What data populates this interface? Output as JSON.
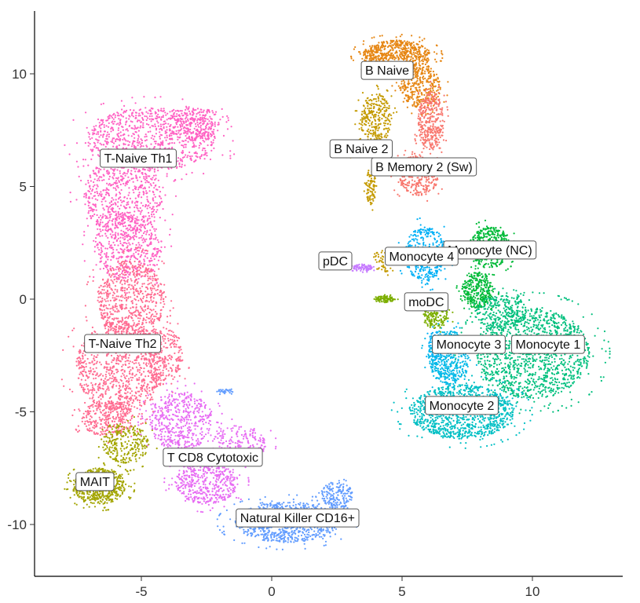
{
  "chart_data": {
    "type": "scatter",
    "title": "",
    "xlabel": "",
    "ylabel": "",
    "xlim": [
      -9.1,
      13.5
    ],
    "ylim": [
      -12.3,
      12.8
    ],
    "x_ticks": [
      -5,
      0,
      5,
      10
    ],
    "y_ticks": [
      10,
      5,
      0,
      -5,
      -10
    ],
    "grid": false,
    "legend": "none",
    "clusters": [
      {
        "name": "T-Naive Th1",
        "color": "#FF61C3",
        "blobs": [
          [
            -4.6,
            7.1,
            2.5,
            1.4,
            300
          ],
          [
            -5.7,
            4.6,
            1.5,
            1.8,
            220
          ],
          [
            -5.5,
            2.3,
            1.3,
            1.5,
            160
          ],
          [
            -3.0,
            7.8,
            1.0,
            0.8,
            80
          ]
        ]
      },
      {
        "name": "T-Naive Th2",
        "color": "#FF6C91",
        "blobs": [
          [
            -5.4,
            0.0,
            1.3,
            1.7,
            220
          ],
          [
            -5.8,
            -3.0,
            1.7,
            2.0,
            320
          ],
          [
            -6.3,
            -5.3,
            1.0,
            0.8,
            100
          ],
          [
            -4.2,
            -2.5,
            0.8,
            1.3,
            90
          ]
        ]
      },
      {
        "name": "MAIT",
        "color": "#A3A500",
        "blobs": [
          [
            -6.6,
            -8.3,
            1.0,
            0.8,
            200
          ],
          [
            -5.6,
            -6.4,
            0.9,
            0.9,
            90
          ]
        ]
      },
      {
        "name": "T CD8 Cytotoxic",
        "color": "#E76BF3",
        "blobs": [
          [
            -3.5,
            -5.4,
            1.2,
            1.3,
            170
          ],
          [
            -2.5,
            -8.1,
            1.2,
            1.0,
            170
          ],
          [
            -1.3,
            -6.4,
            1.1,
            0.8,
            70
          ]
        ]
      },
      {
        "name": "Natural Killer CD16+",
        "color": "#619CFF",
        "blobs": [
          [
            0.6,
            -9.9,
            2.0,
            0.9,
            300
          ],
          [
            2.5,
            -8.7,
            0.6,
            0.6,
            60
          ],
          [
            -1.8,
            -4.1,
            0.3,
            0.1,
            10
          ]
        ]
      },
      {
        "name": "B Naive",
        "color": "#E68613",
        "blobs": [
          [
            4.8,
            10.8,
            1.3,
            0.7,
            220
          ],
          [
            5.7,
            9.4,
            0.8,
            0.9,
            110
          ]
        ]
      },
      {
        "name": "B Naive 2",
        "color": "#C49A00",
        "blobs": [
          [
            4.0,
            8.0,
            0.6,
            1.1,
            100
          ],
          [
            3.3,
            6.6,
            0.8,
            0.25,
            50
          ],
          [
            3.8,
            5.0,
            0.2,
            0.8,
            30
          ],
          [
            4.3,
            1.7,
            0.4,
            0.5,
            20
          ]
        ]
      },
      {
        "name": "B Memory 2 (Sw)",
        "color": "#F8766D",
        "blobs": [
          [
            6.1,
            7.9,
            0.5,
            1.3,
            120
          ],
          [
            5.6,
            5.5,
            0.8,
            0.9,
            110
          ]
        ]
      },
      {
        "name": "Monocyte 4",
        "color": "#00B0F6",
        "blobs": [
          [
            5.9,
            2.0,
            0.8,
            1.2,
            120
          ],
          [
            6.3,
            -2.1,
            0.3,
            0.7,
            40
          ]
        ]
      },
      {
        "name": "Monocyte (NC)",
        "color": "#00BA38",
        "blobs": [
          [
            8.4,
            2.3,
            0.8,
            0.9,
            160
          ],
          [
            7.9,
            0.4,
            0.6,
            0.8,
            110
          ]
        ]
      },
      {
        "name": "pDC",
        "color": "#C77CFF",
        "blobs": [
          [
            3.5,
            1.4,
            0.4,
            0.15,
            30
          ]
        ]
      },
      {
        "name": "moDC",
        "color": "#7CAE00",
        "blobs": [
          [
            4.3,
            0.0,
            0.4,
            0.15,
            30
          ],
          [
            6.3,
            -0.8,
            0.5,
            0.5,
            50
          ]
        ]
      },
      {
        "name": "Monocyte 1",
        "color": "#00BF7D",
        "blobs": [
          [
            10.0,
            -2.4,
            2.2,
            2.0,
            450
          ],
          [
            8.8,
            -0.6,
            1.0,
            0.8,
            90
          ]
        ]
      },
      {
        "name": "Monocyte 2",
        "color": "#00BFC4",
        "blobs": [
          [
            7.3,
            -5.0,
            2.0,
            1.2,
            380
          ]
        ]
      },
      {
        "name": "Monocyte 3",
        "color": "#00B8E7",
        "blobs": [
          [
            6.8,
            -2.6,
            0.8,
            1.2,
            150
          ]
        ]
      }
    ],
    "labels": [
      {
        "text": "B Naive",
        "x": 4.43,
        "y": 10.17
      },
      {
        "text": "B Naive 2",
        "x": 3.43,
        "y": 6.69
      },
      {
        "text": "B Memory 2 (Sw)",
        "x": 5.84,
        "y": 5.89
      },
      {
        "text": "T-Naive Th1",
        "x": -5.12,
        "y": 6.27
      },
      {
        "text": "T-Naive Th2",
        "x": -5.72,
        "y": -1.95
      },
      {
        "text": "pDC",
        "x": 2.44,
        "y": 1.71
      },
      {
        "text": "Monocyte (NC)",
        "x": 8.37,
        "y": 2.2
      },
      {
        "text": "Monocyte 4",
        "x": 5.75,
        "y": 1.92
      },
      {
        "text": "moDC",
        "x": 5.93,
        "y": -0.1
      },
      {
        "text": "Monocyte 1",
        "x": 10.6,
        "y": -1.99
      },
      {
        "text": "Monocyte 3",
        "x": 7.56,
        "y": -1.99
      },
      {
        "text": "Monocyte 2",
        "x": 7.29,
        "y": -4.7
      },
      {
        "text": "T CD8 Cytotoxic",
        "x": -2.26,
        "y": -7.0
      },
      {
        "text": "MAIT",
        "x": -6.78,
        "y": -8.08
      },
      {
        "text": "Natural Killer CD16+",
        "x": 0.99,
        "y": -9.69
      }
    ]
  }
}
